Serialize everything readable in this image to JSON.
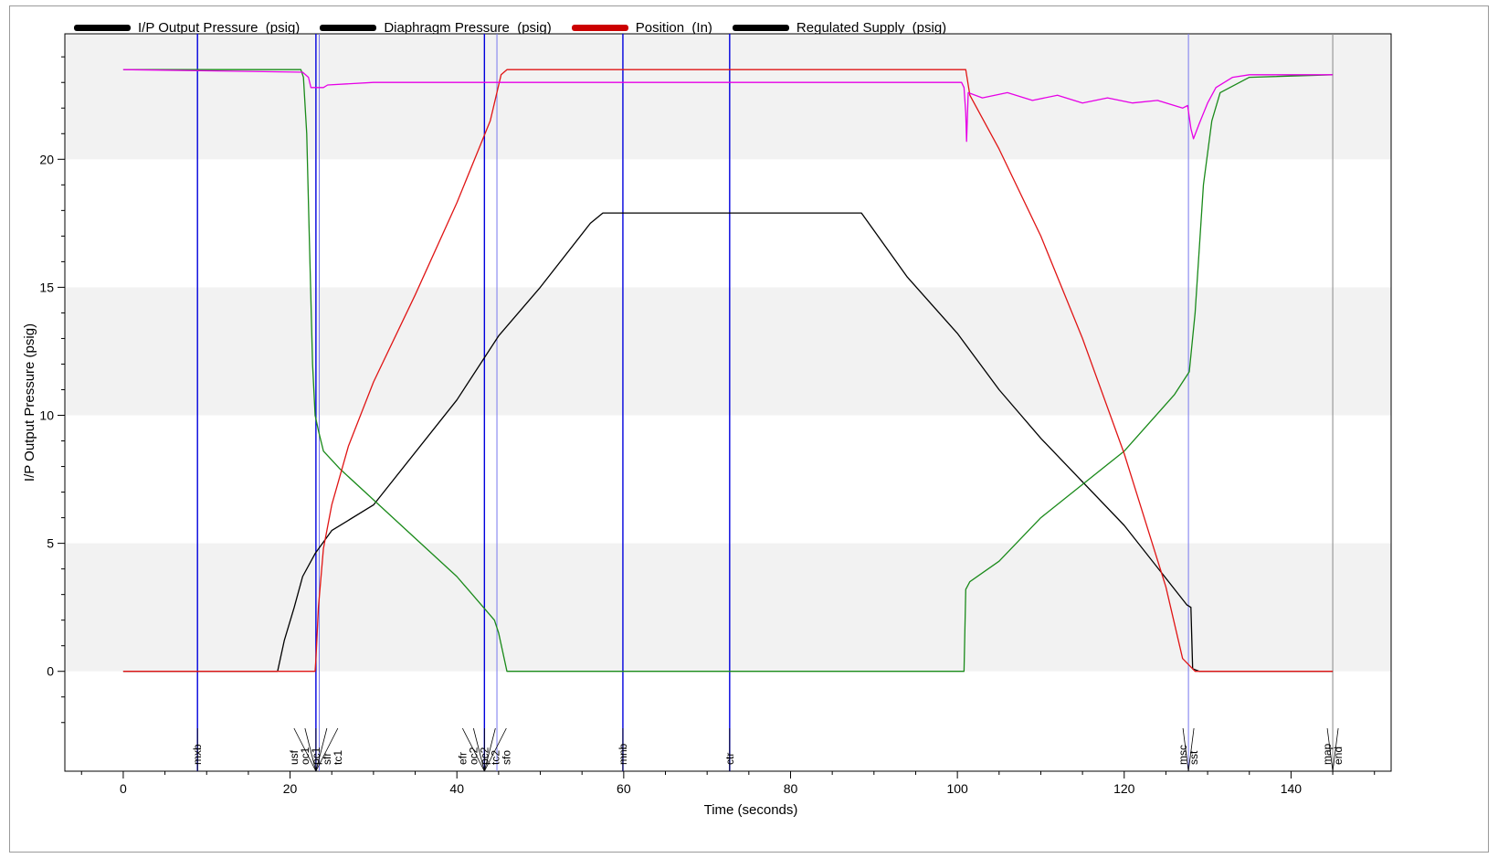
{
  "chart_data": {
    "type": "line",
    "xlabel": "Time  (seconds)",
    "ylabel": "I/P Output Pressure  (psig)",
    "xlim": [
      -7,
      152
    ],
    "ylim": [
      -3.9,
      24.9
    ],
    "xticks": [
      0,
      20,
      40,
      60,
      80,
      100,
      120,
      140
    ],
    "yticks": [
      0,
      5,
      10,
      15,
      20
    ],
    "series": [
      {
        "name": "I/P Output Pressure  (psig)",
        "legend_color": "#000000",
        "color": "#000000",
        "points": [
          [
            0,
            0
          ],
          [
            18.5,
            0
          ],
          [
            19.3,
            1.2
          ],
          [
            20.5,
            2.5
          ],
          [
            21.5,
            3.7
          ],
          [
            23,
            4.6
          ],
          [
            25,
            5.5
          ],
          [
            30,
            6.5
          ],
          [
            40,
            10.6
          ],
          [
            45,
            13.1
          ],
          [
            50,
            15.0
          ],
          [
            56,
            17.5
          ],
          [
            57.5,
            17.9
          ],
          [
            88.5,
            17.9
          ],
          [
            94,
            15.4
          ],
          [
            100,
            13.2
          ],
          [
            105,
            11.0
          ],
          [
            110,
            9.1
          ],
          [
            120,
            5.7
          ],
          [
            127.5,
            2.6
          ],
          [
            128,
            2.5
          ],
          [
            128.2,
            0.1
          ],
          [
            129,
            0
          ],
          [
            145,
            0
          ]
        ]
      },
      {
        "name": "Diaphragm Pressure  (psig)",
        "legend_color": "#000000",
        "color": "#1a8a1a",
        "points": [
          [
            0,
            23.5
          ],
          [
            21.3,
            23.5
          ],
          [
            21.6,
            23.2
          ],
          [
            22,
            21.0
          ],
          [
            22.3,
            17.0
          ],
          [
            22.7,
            12.0
          ],
          [
            23,
            10.0
          ],
          [
            23.4,
            9.4
          ],
          [
            24,
            8.6
          ],
          [
            26,
            7.9
          ],
          [
            30,
            6.7
          ],
          [
            35,
            5.2
          ],
          [
            40,
            3.7
          ],
          [
            44.5,
            2.0
          ],
          [
            45,
            1.5
          ],
          [
            46,
            0
          ],
          [
            100.8,
            0
          ],
          [
            101,
            3.2
          ],
          [
            101.5,
            3.5
          ],
          [
            105,
            4.3
          ],
          [
            110,
            6.0
          ],
          [
            120,
            8.6
          ],
          [
            126,
            10.8
          ],
          [
            127.8,
            11.7
          ],
          [
            128.5,
            14.0
          ],
          [
            129.5,
            19.0
          ],
          [
            130.5,
            21.5
          ],
          [
            131.5,
            22.6
          ],
          [
            135,
            23.2
          ],
          [
            145,
            23.3
          ]
        ]
      },
      {
        "name": "Position  (In)",
        "legend_color": "#cc0000",
        "color": "#e01515",
        "points": [
          [
            0,
            0
          ],
          [
            23,
            0
          ],
          [
            23.1,
            0.5
          ],
          [
            23.4,
            2.5
          ],
          [
            24,
            4.8
          ],
          [
            25,
            6.5
          ],
          [
            27,
            8.8
          ],
          [
            30,
            11.3
          ],
          [
            35,
            14.7
          ],
          [
            40,
            18.3
          ],
          [
            44,
            21.5
          ],
          [
            45.3,
            23.3
          ],
          [
            46,
            23.5
          ],
          [
            101,
            23.5
          ],
          [
            101.5,
            22.5
          ],
          [
            105,
            20.4
          ],
          [
            110,
            17.0
          ],
          [
            115,
            13.0
          ],
          [
            120,
            8.5
          ],
          [
            125,
            3.3
          ],
          [
            127,
            0.5
          ],
          [
            128.5,
            0
          ],
          [
            145,
            0
          ]
        ]
      },
      {
        "name": "Regulated Supply  (psig)",
        "legend_color": "#000000",
        "color": "#e600e6",
        "points": [
          [
            0,
            23.5
          ],
          [
            21.5,
            23.4
          ],
          [
            22.2,
            23.2
          ],
          [
            22.5,
            22.8
          ],
          [
            24,
            22.8
          ],
          [
            24.5,
            22.9
          ],
          [
            30,
            23.0
          ],
          [
            100.5,
            23.0
          ],
          [
            100.8,
            22.8
          ],
          [
            101,
            21.8
          ],
          [
            101.1,
            20.7
          ],
          [
            101.3,
            22.6
          ],
          [
            103,
            22.4
          ],
          [
            106,
            22.6
          ],
          [
            109,
            22.3
          ],
          [
            112,
            22.5
          ],
          [
            115,
            22.2
          ],
          [
            118,
            22.4
          ],
          [
            121,
            22.2
          ],
          [
            124,
            22.3
          ],
          [
            127,
            22.0
          ],
          [
            127.6,
            22.1
          ],
          [
            128,
            21.2
          ],
          [
            128.3,
            20.8
          ],
          [
            129,
            21.4
          ],
          [
            130,
            22.2
          ],
          [
            131,
            22.8
          ],
          [
            133,
            23.2
          ],
          [
            135,
            23.3
          ],
          [
            145,
            23.3
          ]
        ]
      }
    ],
    "event_lines": [
      {
        "x": 8.9,
        "color": "#0000dd",
        "labels": [
          "mxb"
        ]
      },
      {
        "x": 23.1,
        "color": "#0000dd",
        "labels": [
          "usf",
          "oc1",
          "pc1",
          "sfr",
          "tc1"
        ]
      },
      {
        "x": 23.5,
        "color": "#7777ee",
        "labels": []
      },
      {
        "x": 43.3,
        "color": "#0000dd",
        "labels": [
          "efr",
          "oc2",
          "pc2",
          "tc2",
          "sfo"
        ]
      },
      {
        "x": 44.8,
        "color": "#7777ee",
        "labels": []
      },
      {
        "x": 59.9,
        "color": "#0000dd",
        "labels": [
          "mnb"
        ]
      },
      {
        "x": 72.7,
        "color": "#0000dd",
        "labels": [
          "ctr"
        ]
      },
      {
        "x": 127.7,
        "color": "#7777ee",
        "labels": [
          "msc",
          "sst"
        ]
      },
      {
        "x": 145,
        "color": "#888888",
        "labels": [
          "map",
          "end"
        ]
      }
    ],
    "grid": "horizontal bands",
    "legend": "top"
  }
}
